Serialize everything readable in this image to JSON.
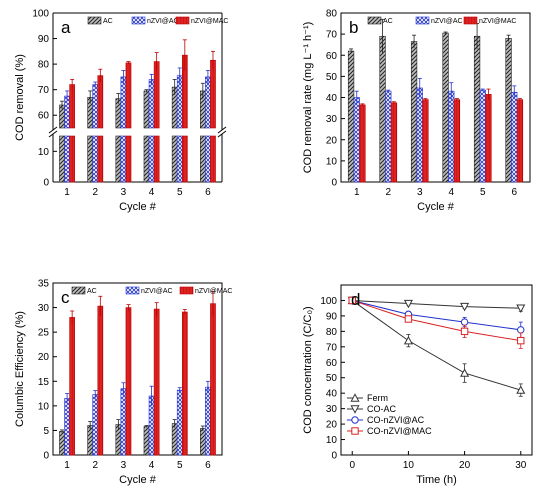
{
  "chart_data": [
    {
      "panel": "a",
      "type": "bar",
      "xlabel": "Cycle #",
      "ylabel": "COD removal (%)",
      "categories": [
        "1",
        "2",
        "3",
        "4",
        "5",
        "6"
      ],
      "y_ticks_upper": [
        60,
        70,
        80,
        90,
        100
      ],
      "y_ticks_lower": [
        0,
        10
      ],
      "ylim_upper": [
        55,
        100
      ],
      "ylim_lower": [
        0,
        15
      ],
      "axis_break": true,
      "legend_position": "top",
      "series": [
        {
          "name": "AC",
          "color": "#555555",
          "pattern": "hatch-dark",
          "values": [
            64,
            67,
            66.5,
            69.5,
            71,
            69.5
          ],
          "errors": [
            1.5,
            2.5,
            2,
            0.5,
            3,
            3
          ]
        },
        {
          "name": "nZVI@AC",
          "color": "#2233cc",
          "pattern": "cross-blue",
          "values": [
            67.5,
            72,
            75,
            74,
            75.5,
            75
          ],
          "errors": [
            2,
            1,
            2.5,
            2,
            3,
            2.5
          ]
        },
        {
          "name": "nZVI@MAC",
          "color": "#dd2222",
          "pattern": "solid-red",
          "values": [
            72,
            75.5,
            80.5,
            81,
            83.5,
            81.5
          ],
          "errors": [
            2,
            2.5,
            0.5,
            3.5,
            6,
            3.5
          ]
        }
      ]
    },
    {
      "panel": "b",
      "type": "bar",
      "xlabel": "Cycle  #",
      "ylabel": "COD removal rate (mg L⁻¹ h⁻¹)",
      "categories": [
        "1",
        "2",
        "3",
        "4",
        "5",
        "6"
      ],
      "y_ticks": [
        0,
        10,
        20,
        30,
        40,
        50,
        60,
        70,
        80
      ],
      "ylim": [
        0,
        80
      ],
      "legend_position": "top",
      "series": [
        {
          "name": "AC",
          "color": "#555555",
          "pattern": "hatch-dark",
          "values": [
            62,
            69,
            66.5,
            70.5,
            69,
            68
          ],
          "errors": [
            1,
            8,
            3,
            0.5,
            6,
            1.5
          ]
        },
        {
          "name": "nZVI@AC",
          "color": "#2233cc",
          "pattern": "cross-blue",
          "values": [
            40,
            43,
            44.5,
            43,
            43.5,
            42.5
          ],
          "errors": [
            3,
            0.5,
            4.5,
            4,
            0.5,
            3
          ]
        },
        {
          "name": "nZVI@MAC",
          "color": "#dd2222",
          "pattern": "solid-red",
          "values": [
            36.5,
            37.5,
            39,
            39,
            41.5,
            39
          ],
          "errors": [
            0.5,
            0.5,
            0.5,
            0.5,
            2.5,
            0.5
          ]
        }
      ]
    },
    {
      "panel": "c",
      "type": "bar",
      "xlabel": "Cycle  #",
      "ylabel": "Columbic Efficiency (%)",
      "categories": [
        "1",
        "2",
        "3",
        "4",
        "5",
        "6"
      ],
      "y_ticks": [
        0,
        5,
        10,
        15,
        20,
        25,
        30,
        35
      ],
      "ylim": [
        0,
        35
      ],
      "legend_position": "top",
      "series": [
        {
          "name": "AC",
          "color": "#555555",
          "pattern": "hatch-dark",
          "values": [
            4.8,
            6,
            6.2,
            5.8,
            6.4,
            5.4
          ],
          "errors": [
            0.3,
            0.8,
            1,
            0.2,
            0.8,
            0.5
          ]
        },
        {
          "name": "nZVI@AC",
          "color": "#2233cc",
          "pattern": "cross-blue",
          "values": [
            11.5,
            12.3,
            13.5,
            12,
            13.2,
            13.8
          ],
          "errors": [
            1,
            0.8,
            1.2,
            2,
            0.5,
            1.2
          ]
        },
        {
          "name": "nZVI@MAC",
          "color": "#dd2222",
          "pattern": "solid-red",
          "values": [
            28,
            30.3,
            30,
            29.7,
            29.1,
            30.8
          ],
          "errors": [
            1.3,
            2,
            0.6,
            1.3,
            0.5,
            2.5
          ]
        }
      ]
    },
    {
      "panel": "d",
      "type": "line",
      "xlabel": "Time (h)",
      "ylabel": "COD concentration (C/C₀)",
      "x_ticks": [
        0,
        10,
        20,
        30
      ],
      "y_ticks": [
        0,
        10,
        20,
        30,
        40,
        50,
        60,
        70,
        80,
        90,
        100
      ],
      "xlim": [
        -2,
        32
      ],
      "ylim": [
        0,
        110
      ],
      "legend_position": "bottom-left",
      "series": [
        {
          "name": "Ferm",
          "color": "#333333",
          "marker": "triangle-up",
          "x": [
            0,
            10,
            20,
            30
          ],
          "y": [
            100,
            74,
            53,
            42
          ],
          "errors": [
            1,
            4,
            6,
            4
          ]
        },
        {
          "name": "CO-AC",
          "color": "#333333",
          "marker": "triangle-down",
          "x": [
            0,
            10,
            20,
            30
          ],
          "y": [
            100,
            98,
            96,
            95
          ],
          "errors": [
            1,
            1,
            1,
            2
          ]
        },
        {
          "name": "CO-nZVI@AC",
          "color": "#2233cc",
          "marker": "circle",
          "x": [
            0,
            10,
            20,
            30
          ],
          "y": [
            100,
            91,
            86,
            81
          ],
          "errors": [
            1,
            2,
            3,
            5
          ]
        },
        {
          "name": "CO-nZVI@MAC",
          "color": "#dd2222",
          "marker": "square",
          "x": [
            0,
            10,
            20,
            30
          ],
          "y": [
            100,
            88,
            80,
            74
          ],
          "errors": [
            1,
            2,
            4,
            5
          ]
        }
      ]
    }
  ]
}
